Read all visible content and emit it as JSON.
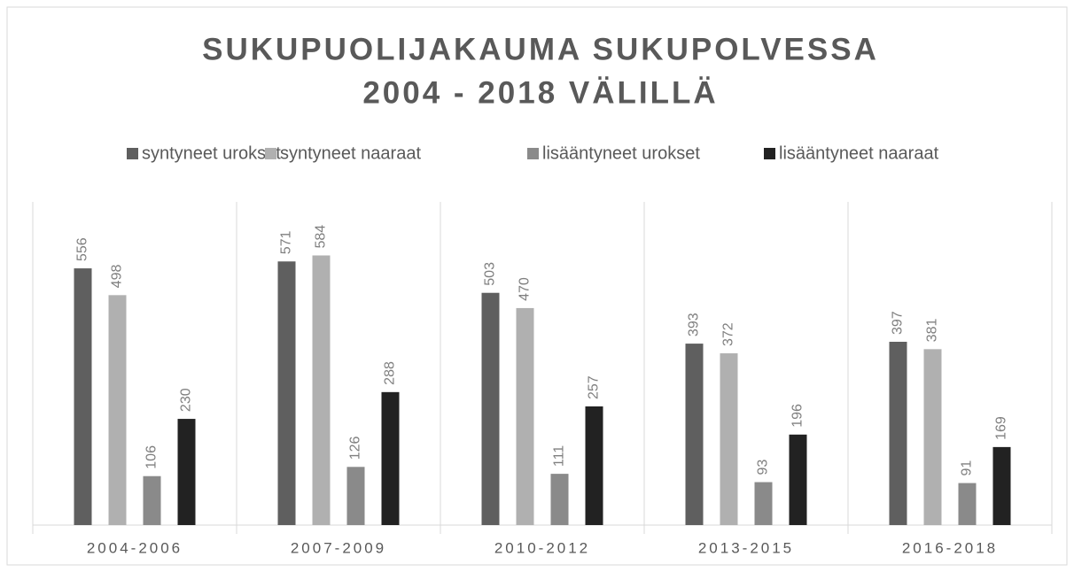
{
  "chart_data": {
    "type": "bar",
    "title": [
      "SUKUPUOLIJAKAUMA SUKUPOLVESSA",
      "2004 - 2018 VÄLILLÄ"
    ],
    "categories": [
      "2004-2006",
      "2007-2009",
      "2010-2012",
      "2013-2015",
      "2016-2018"
    ],
    "series": [
      {
        "name": "syntyneet urokset",
        "color": "#5f5f5f",
        "values": [
          556,
          571,
          503,
          393,
          397
        ]
      },
      {
        "name": "syntyneet naaraat",
        "color": "#b0b0b0",
        "values": [
          498,
          584,
          470,
          372,
          381
        ]
      },
      {
        "name": "lisääntyneet urokset",
        "color": "#8a8a8a",
        "values": [
          106,
          126,
          111,
          93,
          91
        ]
      },
      {
        "name": "lisääntyneet naaraat",
        "color": "#222222",
        "values": [
          230,
          288,
          257,
          196,
          169
        ]
      }
    ],
    "ylim": [
      0,
      700
    ],
    "legend": "top"
  }
}
